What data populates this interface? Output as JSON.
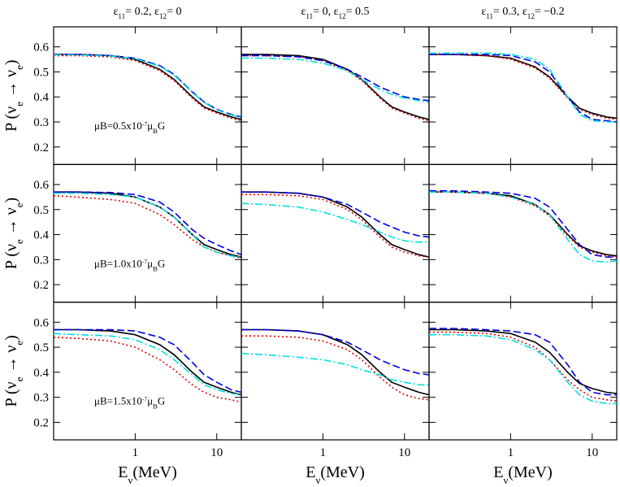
{
  "chart_data": [
    {
      "type": "line",
      "title": [
        {
          "text": "ε"
        },
        {
          "text": "11",
          "pos": "sub"
        },
        {
          "text": "= 0.2,   ε"
        },
        {
          "text": "12",
          "pos": "sub"
        },
        {
          "text": "= 0"
        }
      ],
      "y_label": [
        {
          "text": "P (ν"
        },
        {
          "text": "e",
          "pos": "sub"
        },
        {
          "text": " → ν"
        },
        {
          "text": "e",
          "pos": "sub"
        },
        {
          "text": ")"
        }
      ],
      "annotation": [
        {
          "text": "μB=0.5x10"
        },
        {
          "text": "-7",
          "pos": "sup"
        },
        {
          "text": "μ"
        },
        {
          "text": "B",
          "pos": "sub"
        },
        {
          "text": "G"
        }
      ],
      "x": [
        0.1,
        0.2,
        0.5,
        1,
        2,
        3,
        5,
        7,
        10,
        15,
        20
      ],
      "xlim": [
        0.1,
        20
      ],
      "xscale": "log",
      "xticks": [
        1,
        10
      ],
      "ylim": [
        0.13,
        0.68
      ],
      "yticks": [
        0.2,
        0.3,
        0.4,
        0.5,
        0.6
      ],
      "show_xtick_labels": false,
      "show_ytick_labels": true,
      "series": [
        {
          "color": "#000000",
          "dash": "solid",
          "values": [
            0.57,
            0.57,
            0.565,
            0.55,
            0.51,
            0.47,
            0.4,
            0.36,
            0.34,
            0.32,
            0.31
          ]
        },
        {
          "color": "#e00000",
          "dash": "dotted",
          "values": [
            0.565,
            0.565,
            0.56,
            0.545,
            0.505,
            0.465,
            0.395,
            0.355,
            0.335,
            0.315,
            0.305
          ]
        },
        {
          "color": "#0000e0",
          "dash": "dashed",
          "values": [
            0.57,
            0.57,
            0.565,
            0.555,
            0.525,
            0.49,
            0.42,
            0.38,
            0.35,
            0.33,
            0.32
          ]
        },
        {
          "color": "#00e0e0",
          "dash": "dashdot",
          "values": [
            0.568,
            0.568,
            0.563,
            0.553,
            0.522,
            0.487,
            0.418,
            0.378,
            0.348,
            0.328,
            0.318
          ]
        }
      ]
    },
    {
      "type": "line",
      "title": [
        {
          "text": "ε"
        },
        {
          "text": "11",
          "pos": "sub"
        },
        {
          "text": "= 0,   ε"
        },
        {
          "text": "12",
          "pos": "sub"
        },
        {
          "text": "= 0.5"
        }
      ],
      "x": [
        0.1,
        0.2,
        0.5,
        1,
        2,
        3,
        5,
        7,
        10,
        15,
        20
      ],
      "xlim": [
        0.1,
        20
      ],
      "xscale": "log",
      "xticks": [
        1,
        10
      ],
      "ylim": [
        0.13,
        0.68
      ],
      "yticks": [
        0.2,
        0.3,
        0.4,
        0.5,
        0.6
      ],
      "show_xtick_labels": false,
      "show_ytick_labels": false,
      "series": [
        {
          "color": "#000000",
          "dash": "solid",
          "values": [
            0.57,
            0.57,
            0.565,
            0.55,
            0.51,
            0.47,
            0.4,
            0.36,
            0.34,
            0.32,
            0.31
          ]
        },
        {
          "color": "#e00000",
          "dash": "dotted",
          "values": [
            0.565,
            0.565,
            0.56,
            0.545,
            0.505,
            0.465,
            0.395,
            0.355,
            0.335,
            0.315,
            0.305
          ]
        },
        {
          "color": "#0000e0",
          "dash": "dashed",
          "values": [
            0.565,
            0.565,
            0.56,
            0.545,
            0.51,
            0.48,
            0.44,
            0.42,
            0.4,
            0.39,
            0.385
          ]
        },
        {
          "color": "#00e0e0",
          "dash": "dashdot",
          "values": [
            0.555,
            0.555,
            0.55,
            0.535,
            0.505,
            0.47,
            0.43,
            0.41,
            0.395,
            0.385,
            0.38
          ]
        }
      ]
    },
    {
      "type": "line",
      "title": [
        {
          "text": "ε"
        },
        {
          "text": "11",
          "pos": "sub"
        },
        {
          "text": "= 0.3,   ε"
        },
        {
          "text": "12",
          "pos": "sub"
        },
        {
          "text": "= −0.2"
        }
      ],
      "x": [
        0.1,
        0.2,
        0.5,
        1,
        2,
        3,
        5,
        7,
        10,
        15,
        20
      ],
      "xlim": [
        0.1,
        20
      ],
      "xscale": "log",
      "xticks": [
        1,
        10
      ],
      "ylim": [
        0.13,
        0.68
      ],
      "yticks": [
        0.2,
        0.3,
        0.4,
        0.5,
        0.6
      ],
      "show_xtick_labels": false,
      "show_ytick_labels": false,
      "series": [
        {
          "color": "#000000",
          "dash": "solid",
          "values": [
            0.57,
            0.57,
            0.565,
            0.555,
            0.52,
            0.48,
            0.4,
            0.355,
            0.335,
            0.32,
            0.315
          ]
        },
        {
          "color": "#e00000",
          "dash": "dotted",
          "values": [
            0.57,
            0.57,
            0.565,
            0.55,
            0.515,
            0.475,
            0.395,
            0.35,
            0.33,
            0.315,
            0.31
          ]
        },
        {
          "color": "#0000e0",
          "dash": "dashed",
          "values": [
            0.57,
            0.57,
            0.57,
            0.565,
            0.54,
            0.5,
            0.4,
            0.34,
            0.31,
            0.305,
            0.3
          ]
        },
        {
          "color": "#00e0e0",
          "dash": "dashdot",
          "values": [
            0.575,
            0.575,
            0.575,
            0.57,
            0.55,
            0.51,
            0.4,
            0.33,
            0.305,
            0.3,
            0.3
          ]
        }
      ]
    },
    {
      "type": "line",
      "y_label": [
        {
          "text": "P (ν"
        },
        {
          "text": "e",
          "pos": "sub"
        },
        {
          "text": " → ν"
        },
        {
          "text": "e",
          "pos": "sub"
        },
        {
          "text": ")"
        }
      ],
      "annotation": [
        {
          "text": "μB=1.0x10"
        },
        {
          "text": "-7",
          "pos": "sup"
        },
        {
          "text": "μ"
        },
        {
          "text": "B",
          "pos": "sub"
        },
        {
          "text": "G"
        }
      ],
      "x": [
        0.1,
        0.2,
        0.5,
        1,
        2,
        3,
        5,
        7,
        10,
        15,
        20
      ],
      "xlim": [
        0.1,
        20
      ],
      "xscale": "log",
      "xticks": [
        1,
        10
      ],
      "ylim": [
        0.13,
        0.68
      ],
      "yticks": [
        0.2,
        0.3,
        0.4,
        0.5,
        0.6
      ],
      "show_xtick_labels": false,
      "show_ytick_labels": true,
      "series": [
        {
          "color": "#000000",
          "dash": "solid",
          "values": [
            0.57,
            0.57,
            0.565,
            0.55,
            0.51,
            0.47,
            0.4,
            0.36,
            0.34,
            0.32,
            0.31
          ]
        },
        {
          "color": "#e00000",
          "dash": "dotted",
          "values": [
            0.555,
            0.55,
            0.54,
            0.525,
            0.48,
            0.44,
            0.38,
            0.35,
            0.33,
            0.315,
            0.305
          ]
        },
        {
          "color": "#0000e0",
          "dash": "dashed",
          "values": [
            0.57,
            0.57,
            0.568,
            0.56,
            0.53,
            0.49,
            0.42,
            0.385,
            0.36,
            0.335,
            0.32
          ]
        },
        {
          "color": "#00e0e0",
          "dash": "dashdot",
          "values": [
            0.565,
            0.565,
            0.56,
            0.55,
            0.51,
            0.47,
            0.4,
            0.35,
            0.33,
            0.315,
            0.31
          ]
        }
      ]
    },
    {
      "type": "line",
      "x": [
        0.1,
        0.2,
        0.5,
        1,
        2,
        3,
        5,
        7,
        10,
        15,
        20
      ],
      "xlim": [
        0.1,
        20
      ],
      "xscale": "log",
      "xticks": [
        1,
        10
      ],
      "ylim": [
        0.13,
        0.68
      ],
      "yticks": [
        0.2,
        0.3,
        0.4,
        0.5,
        0.6
      ],
      "show_xtick_labels": false,
      "show_ytick_labels": false,
      "series": [
        {
          "color": "#000000",
          "dash": "solid",
          "values": [
            0.57,
            0.57,
            0.565,
            0.55,
            0.51,
            0.47,
            0.4,
            0.36,
            0.34,
            0.32,
            0.31
          ]
        },
        {
          "color": "#e00000",
          "dash": "dotted",
          "values": [
            0.56,
            0.56,
            0.555,
            0.54,
            0.5,
            0.46,
            0.39,
            0.35,
            0.33,
            0.315,
            0.31
          ]
        },
        {
          "color": "#0000e0",
          "dash": "dashed",
          "values": [
            0.57,
            0.57,
            0.565,
            0.55,
            0.52,
            0.49,
            0.45,
            0.43,
            0.41,
            0.395,
            0.39
          ]
        },
        {
          "color": "#00e0e0",
          "dash": "dashdot",
          "values": [
            0.525,
            0.52,
            0.51,
            0.49,
            0.46,
            0.44,
            0.41,
            0.39,
            0.375,
            0.37,
            0.37
          ]
        }
      ]
    },
    {
      "type": "line",
      "x": [
        0.1,
        0.2,
        0.5,
        1,
        2,
        3,
        5,
        7,
        10,
        15,
        20
      ],
      "xlim": [
        0.1,
        20
      ],
      "xscale": "log",
      "xticks": [
        1,
        10
      ],
      "ylim": [
        0.13,
        0.68
      ],
      "yticks": [
        0.2,
        0.3,
        0.4,
        0.5,
        0.6
      ],
      "show_xtick_labels": false,
      "show_ytick_labels": false,
      "series": [
        {
          "color": "#000000",
          "dash": "solid",
          "values": [
            0.57,
            0.57,
            0.565,
            0.555,
            0.52,
            0.48,
            0.4,
            0.355,
            0.335,
            0.32,
            0.315
          ]
        },
        {
          "color": "#e00000",
          "dash": "dotted",
          "values": [
            0.57,
            0.57,
            0.565,
            0.55,
            0.515,
            0.475,
            0.395,
            0.35,
            0.33,
            0.315,
            0.31
          ]
        },
        {
          "color": "#0000e0",
          "dash": "dashed",
          "values": [
            0.575,
            0.575,
            0.57,
            0.565,
            0.545,
            0.51,
            0.42,
            0.36,
            0.32,
            0.31,
            0.31
          ]
        },
        {
          "color": "#00e0e0",
          "dash": "dashdot",
          "values": [
            0.57,
            0.57,
            0.565,
            0.55,
            0.52,
            0.48,
            0.38,
            0.32,
            0.295,
            0.29,
            0.295
          ]
        }
      ]
    },
    {
      "type": "line",
      "y_label": [
        {
          "text": "P (ν"
        },
        {
          "text": "e",
          "pos": "sub"
        },
        {
          "text": " → ν"
        },
        {
          "text": "e",
          "pos": "sub"
        },
        {
          "text": ")"
        }
      ],
      "annotation": [
        {
          "text": "μB=1.5x10"
        },
        {
          "text": "-7",
          "pos": "sup"
        },
        {
          "text": "μ"
        },
        {
          "text": "B",
          "pos": "sub"
        },
        {
          "text": "G"
        }
      ],
      "x_label": [
        {
          "text": "E"
        },
        {
          "text": "ν",
          "pos": "sub"
        },
        {
          "text": "(MeV)"
        }
      ],
      "x": [
        0.1,
        0.2,
        0.5,
        1,
        2,
        3,
        5,
        7,
        10,
        15,
        20
      ],
      "xlim": [
        0.1,
        20
      ],
      "xscale": "log",
      "xticks": [
        1,
        10
      ],
      "ylim": [
        0.13,
        0.68
      ],
      "yticks": [
        0.2,
        0.3,
        0.4,
        0.5,
        0.6
      ],
      "show_xtick_labels": true,
      "show_ytick_labels": true,
      "series": [
        {
          "color": "#000000",
          "dash": "solid",
          "values": [
            0.57,
            0.57,
            0.565,
            0.55,
            0.51,
            0.47,
            0.4,
            0.36,
            0.34,
            0.32,
            0.31
          ]
        },
        {
          "color": "#e00000",
          "dash": "dotted",
          "values": [
            0.54,
            0.535,
            0.525,
            0.5,
            0.45,
            0.41,
            0.35,
            0.32,
            0.3,
            0.29,
            0.28
          ]
        },
        {
          "color": "#0000e0",
          "dash": "dashed",
          "values": [
            0.57,
            0.57,
            0.57,
            0.565,
            0.54,
            0.51,
            0.44,
            0.39,
            0.36,
            0.33,
            0.32
          ]
        },
        {
          "color": "#00e0e0",
          "dash": "dashdot",
          "values": [
            0.555,
            0.55,
            0.545,
            0.53,
            0.49,
            0.45,
            0.39,
            0.35,
            0.33,
            0.315,
            0.31
          ]
        }
      ]
    },
    {
      "type": "line",
      "x_label": [
        {
          "text": "E"
        },
        {
          "text": "ν",
          "pos": "sub"
        },
        {
          "text": "(MeV)"
        }
      ],
      "x": [
        0.1,
        0.2,
        0.5,
        1,
        2,
        3,
        5,
        7,
        10,
        15,
        20
      ],
      "xlim": [
        0.1,
        20
      ],
      "xscale": "log",
      "xticks": [
        1,
        10
      ],
      "ylim": [
        0.13,
        0.68
      ],
      "yticks": [
        0.2,
        0.3,
        0.4,
        0.5,
        0.6
      ],
      "show_xtick_labels": true,
      "show_ytick_labels": false,
      "series": [
        {
          "color": "#000000",
          "dash": "solid",
          "values": [
            0.57,
            0.57,
            0.565,
            0.55,
            0.51,
            0.47,
            0.4,
            0.36,
            0.34,
            0.32,
            0.31
          ]
        },
        {
          "color": "#e00000",
          "dash": "dotted",
          "values": [
            0.545,
            0.545,
            0.54,
            0.525,
            0.49,
            0.45,
            0.38,
            0.34,
            0.31,
            0.295,
            0.29
          ]
        },
        {
          "color": "#0000e0",
          "dash": "dashed",
          "values": [
            0.57,
            0.57,
            0.565,
            0.55,
            0.52,
            0.49,
            0.45,
            0.43,
            0.41,
            0.395,
            0.39
          ]
        },
        {
          "color": "#00e0e0",
          "dash": "dashdot",
          "values": [
            0.475,
            0.47,
            0.46,
            0.45,
            0.43,
            0.41,
            0.39,
            0.37,
            0.36,
            0.35,
            0.35
          ]
        }
      ]
    },
    {
      "type": "line",
      "x_label": [
        {
          "text": "E"
        },
        {
          "text": "ν",
          "pos": "sub"
        },
        {
          "text": "(MeV)"
        }
      ],
      "x": [
        0.1,
        0.2,
        0.5,
        1,
        2,
        3,
        5,
        7,
        10,
        15,
        20
      ],
      "xlim": [
        0.1,
        20
      ],
      "xscale": "log",
      "xticks": [
        1,
        10
      ],
      "ylim": [
        0.13,
        0.68
      ],
      "yticks": [
        0.2,
        0.3,
        0.4,
        0.5,
        0.6
      ],
      "show_xtick_labels": true,
      "show_ytick_labels": false,
      "series": [
        {
          "color": "#000000",
          "dash": "solid",
          "values": [
            0.57,
            0.57,
            0.565,
            0.555,
            0.52,
            0.48,
            0.4,
            0.355,
            0.335,
            0.32,
            0.315
          ]
        },
        {
          "color": "#e00000",
          "dash": "dotted",
          "values": [
            0.56,
            0.56,
            0.555,
            0.54,
            0.5,
            0.45,
            0.37,
            0.33,
            0.3,
            0.29,
            0.285
          ]
        },
        {
          "color": "#0000e0",
          "dash": "dashed",
          "values": [
            0.575,
            0.575,
            0.57,
            0.565,
            0.55,
            0.52,
            0.43,
            0.36,
            0.32,
            0.31,
            0.31
          ]
        },
        {
          "color": "#00e0e0",
          "dash": "dashdot",
          "values": [
            0.55,
            0.55,
            0.545,
            0.53,
            0.49,
            0.45,
            0.36,
            0.31,
            0.285,
            0.275,
            0.275
          ]
        }
      ]
    }
  ]
}
